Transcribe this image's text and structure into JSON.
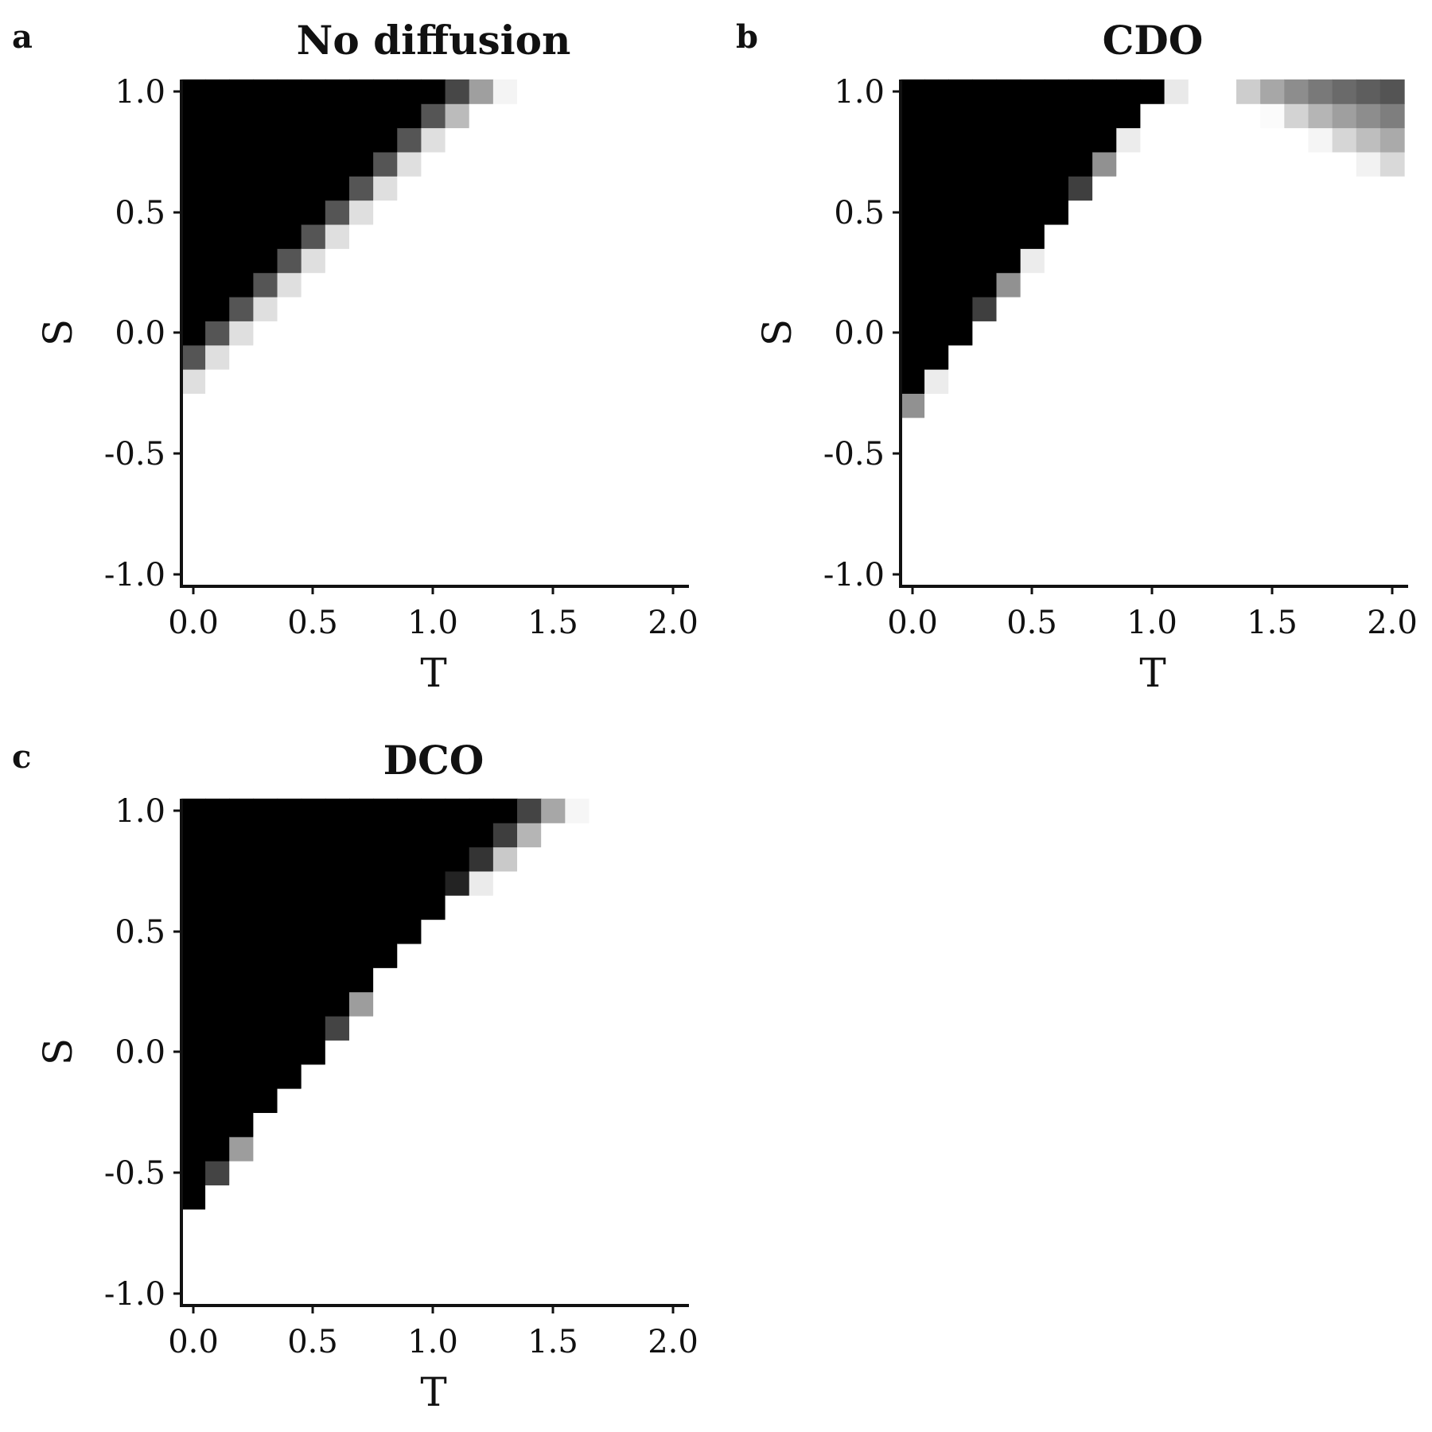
{
  "figure": {
    "background": "#ffffff",
    "colormap": "greys_reversed (0 = black, 1 = white)"
  },
  "chart_data": [
    {
      "type": "heatmap",
      "panel_letter": "a",
      "title": "No diffusion",
      "xlabel": "T",
      "ylabel": "S",
      "x_ticks": [
        "0.0",
        "0.5",
        "1.0",
        "1.5",
        "2.0"
      ],
      "y_ticks": [
        "1.0",
        "0.5",
        "0.0",
        "-0.5",
        "-1.0"
      ],
      "xlim": [
        0,
        2
      ],
      "ylim": [
        -1,
        1
      ],
      "grid": false,
      "n_cols": 21,
      "n_rows": 21,
      "boundary_base": 0,
      "boundary_slope": 1,
      "transition_width": 0.22,
      "width_growth": 0.3,
      "softness": 1.4,
      "cells": "value(T,S) rises from 0 (black) above boundary S = T - 1 to 1 (white) below it"
    },
    {
      "type": "heatmap",
      "panel_letter": "b",
      "title": "CDO",
      "xlabel": "T",
      "ylabel": "S",
      "x_ticks": [
        "0.0",
        "0.5",
        "1.0",
        "1.5",
        "2.0"
      ],
      "y_ticks": [
        "1.0",
        "0.5",
        "0.0",
        "-0.5",
        "-1.0"
      ],
      "xlim": [
        0,
        2
      ],
      "ylim": [
        -1,
        1
      ],
      "grid": false,
      "n_cols": 21,
      "n_rows": 21,
      "boundary_base": -0.25,
      "boundary_slope": 1.25,
      "boundary_cap": 1.25,
      "transition_width": 0.08,
      "width_growth": 0.55,
      "softness": 1.2,
      "cells": "sharp boundary for T < 1, broad grey gradient for T > 1"
    },
    {
      "type": "heatmap",
      "panel_letter": "c",
      "title": "DCO",
      "xlabel": "T",
      "ylabel": "S",
      "x_ticks": [
        "0.0",
        "0.5",
        "1.0",
        "1.5",
        "2.0"
      ],
      "y_ticks": [
        "1.0",
        "0.5",
        "0.0",
        "-0.5",
        "-1.0"
      ],
      "xlim": [
        0,
        2
      ],
      "ylim": [
        -1,
        1
      ],
      "grid": false,
      "n_cols": 21,
      "n_rows": 21,
      "boundary_base": -0.6,
      "boundary_slope": 1.2,
      "transition_width": 0.06,
      "width_growth": 0.45,
      "softness": 1.2,
      "cells": "sharp diagonal boundary starting near S = -0.6 at T = 0"
    }
  ]
}
